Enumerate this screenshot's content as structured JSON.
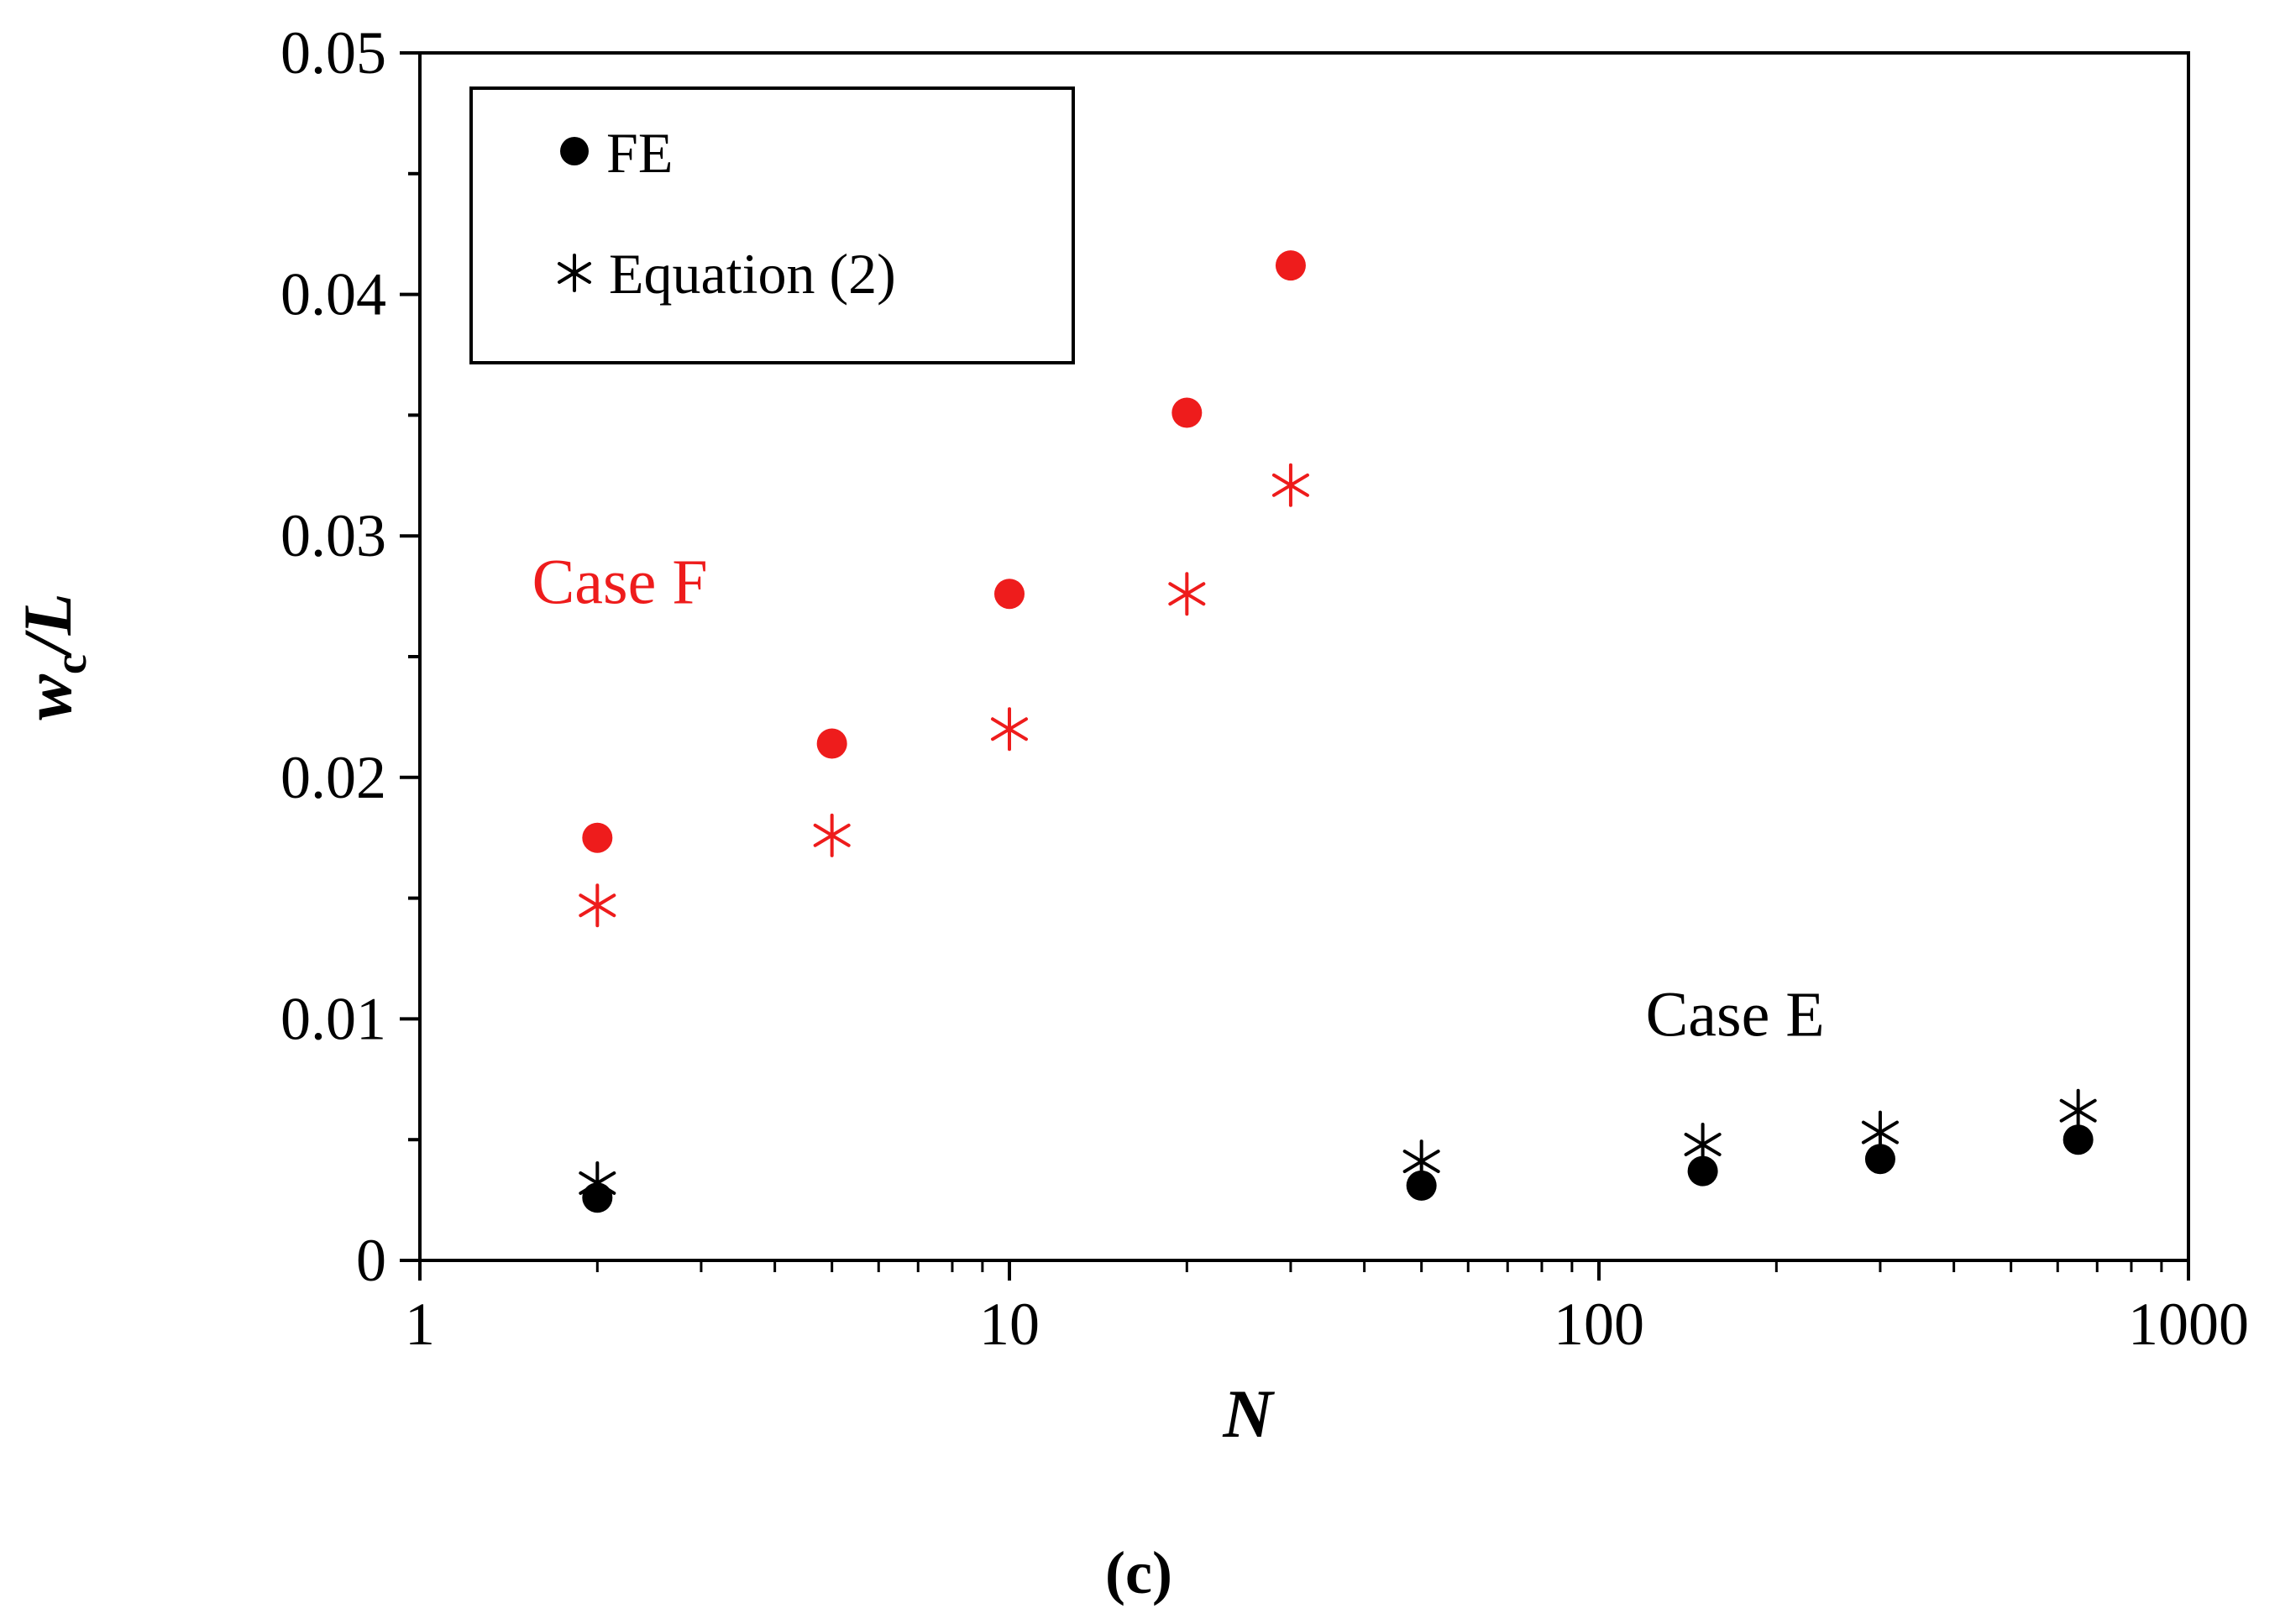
{
  "chart_data": {
    "type": "scatter",
    "xscale": "log",
    "xlim": [
      1,
      1000
    ],
    "ylim": [
      0,
      0.05
    ],
    "xlabel": "N",
    "ylabel_main": "w",
    "ylabel_sub": "c",
    "ylabel_tail": "/L",
    "caption": "(c)",
    "x_ticks": [
      {
        "value": 1,
        "label": "1"
      },
      {
        "value": 10,
        "label": "10"
      },
      {
        "value": 100,
        "label": "100"
      },
      {
        "value": 1000,
        "label": "1000"
      }
    ],
    "y_ticks": [
      {
        "value": 0,
        "label": "0"
      },
      {
        "value": 0.01,
        "label": "0.01"
      },
      {
        "value": 0.02,
        "label": "0.02"
      },
      {
        "value": 0.03,
        "label": "0.03"
      },
      {
        "value": 0.04,
        "label": "0.04"
      },
      {
        "value": 0.05,
        "label": "0.05"
      }
    ],
    "legend": {
      "position": "top-left",
      "entries": [
        {
          "marker": "circle",
          "label": "FE"
        },
        {
          "marker": "asterisk",
          "label": "Equation (2)"
        }
      ]
    },
    "annotations": [
      {
        "text": "Case F",
        "color": "#ee1c1c",
        "x": 1.55,
        "y": 0.0272
      },
      {
        "text": "Case E",
        "color": "#000000",
        "x": 120,
        "y": 0.0093
      }
    ],
    "groups": [
      {
        "case": "Case F",
        "color": "#ee1c1c",
        "FE": {
          "x": [
            2,
            5,
            10,
            20,
            30
          ],
          "y": [
            0.0175,
            0.0214,
            0.0276,
            0.0351,
            0.0412
          ]
        },
        "Equation (2)": {
          "x": [
            2,
            5,
            10,
            20,
            30
          ],
          "y": [
            0.0147,
            0.0176,
            0.022,
            0.0276,
            0.0321
          ]
        }
      },
      {
        "case": "Case E",
        "color": "#000000",
        "FE": {
          "x": [
            2,
            50,
            150,
            300,
            650
          ],
          "y": [
            0.0026,
            0.0031,
            0.0037,
            0.0042,
            0.005
          ]
        },
        "Equation (2)": {
          "x": [
            2,
            50,
            150,
            300,
            650
          ],
          "y": [
            0.0032,
            0.0041,
            0.0048,
            0.0053,
            0.0062
          ]
        }
      }
    ]
  }
}
